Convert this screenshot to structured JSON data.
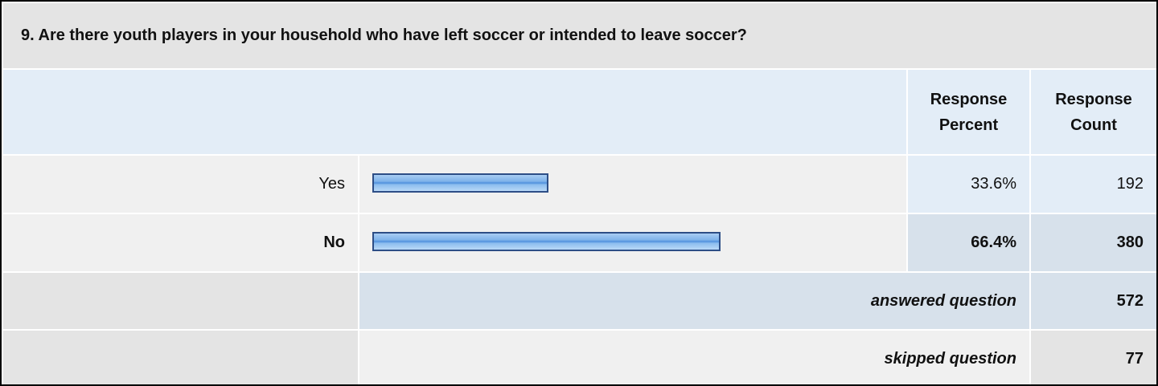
{
  "title": "9. Are there youth players in your household who have left soccer or intended to leave soccer?",
  "header": {
    "percent": "Response Percent",
    "count": "Response Count"
  },
  "rows": [
    {
      "label": "Yes",
      "percent": {
        "value": 33.6,
        "label": "33.6%"
      },
      "count": 192
    },
    {
      "label": "No",
      "percent": {
        "value": 66.4,
        "label": "66.4%"
      },
      "count": 380
    }
  ],
  "answered": {
    "label": "answered question",
    "count": 572
  },
  "skipped": {
    "label": "skipped question",
    "count": 77
  }
}
